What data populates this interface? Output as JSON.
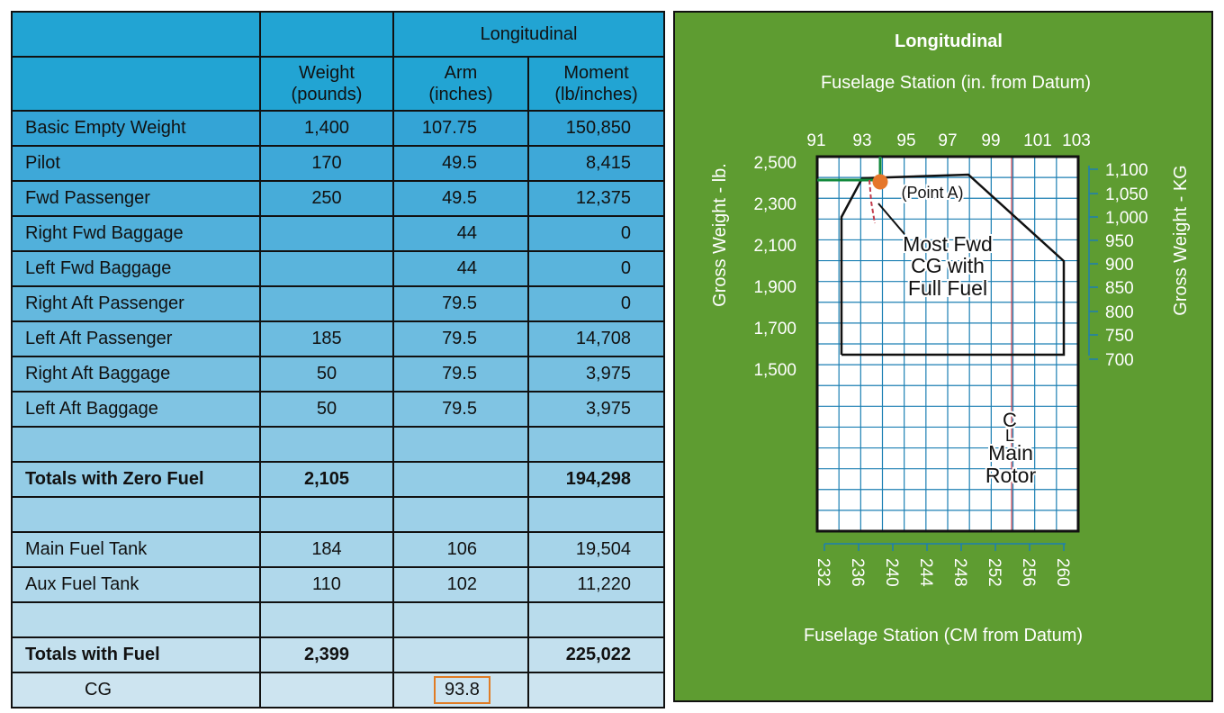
{
  "table": {
    "header_group": "Longitudinal",
    "headers": {
      "weight": [
        "Weight",
        "(pounds)"
      ],
      "arm": [
        "Arm",
        "(inches)"
      ],
      "moment": [
        "Moment",
        "(lb/inches)"
      ]
    },
    "rows": [
      {
        "item": "Basic Empty Weight",
        "weight": "1,400",
        "arm": "107.75",
        "moment": "150,850"
      },
      {
        "item": "Pilot",
        "weight": "170",
        "arm": "49.5",
        "moment": "8,415"
      },
      {
        "item": "Fwd Passenger",
        "weight": "250",
        "arm": "49.5",
        "moment": "12,375"
      },
      {
        "item": "Right Fwd Baggage",
        "weight": "",
        "arm": "44",
        "moment": "0"
      },
      {
        "item": "Left Fwd Baggage",
        "weight": "",
        "arm": "44",
        "moment": "0"
      },
      {
        "item": "Right Aft Passenger",
        "weight": "",
        "arm": "79.5",
        "moment": "0"
      },
      {
        "item": "Left Aft Passenger",
        "weight": "185",
        "arm": "79.5",
        "moment": "14,708"
      },
      {
        "item": "Right Aft Baggage",
        "weight": "50",
        "arm": "79.5",
        "moment": "3,975"
      },
      {
        "item": "Left Aft Baggage",
        "weight": "50",
        "arm": "79.5",
        "moment": "3,975"
      }
    ],
    "zero_fuel": {
      "label": "Totals with Zero Fuel",
      "weight": "2,105",
      "moment": "194,298"
    },
    "fuel_rows": [
      {
        "item": "Main Fuel Tank",
        "weight": "184",
        "arm": "106",
        "moment": "19,504"
      },
      {
        "item": "Aux Fuel Tank",
        "weight": "110",
        "arm": "102",
        "moment": "11,220"
      }
    ],
    "with_fuel": {
      "label": "Totals with Fuel",
      "weight": "2,399",
      "moment": "225,022"
    },
    "cg": {
      "label": "CG",
      "value": "93.8",
      "highlight_color": "#e07b24"
    }
  },
  "chart": {
    "title": "Longitudinal",
    "top_axis_label": "Fuselage Station (in. from Datum)",
    "bottom_axis_label": "Fuselage Station (CM from Datum)",
    "left_axis_label": "Gross Weight - lb.",
    "right_axis_label": "Gross Weight - KG",
    "top_ticks": [
      "91",
      "93",
      "95",
      "97",
      "99",
      "101",
      "103"
    ],
    "left_ticks": [
      "2,500",
      "2,300",
      "2,100",
      "1,900",
      "1,700",
      "1,500"
    ],
    "right_ticks": [
      "1,100",
      "1,050",
      "1,000",
      "950",
      "900",
      "850",
      "800",
      "750",
      "700"
    ],
    "bottom_ticks": [
      "232",
      "236",
      "240",
      "244",
      "248",
      "252",
      "256",
      "260"
    ],
    "annotations": {
      "point_a": "(Point A)",
      "most_fwd": [
        "Most Fwd",
        "CG with",
        "Full Fuel"
      ],
      "cl_symbol": "C",
      "cl_sub": "L",
      "main_rotor": [
        "Main",
        "Rotor"
      ]
    },
    "colors": {
      "panel": "#5e9c31",
      "grid_line": "#1b7fb3",
      "envelope": "#111111",
      "point": "#e5762a",
      "guide": "#138a3c",
      "rotor_line": "#c23b4b"
    }
  }
}
